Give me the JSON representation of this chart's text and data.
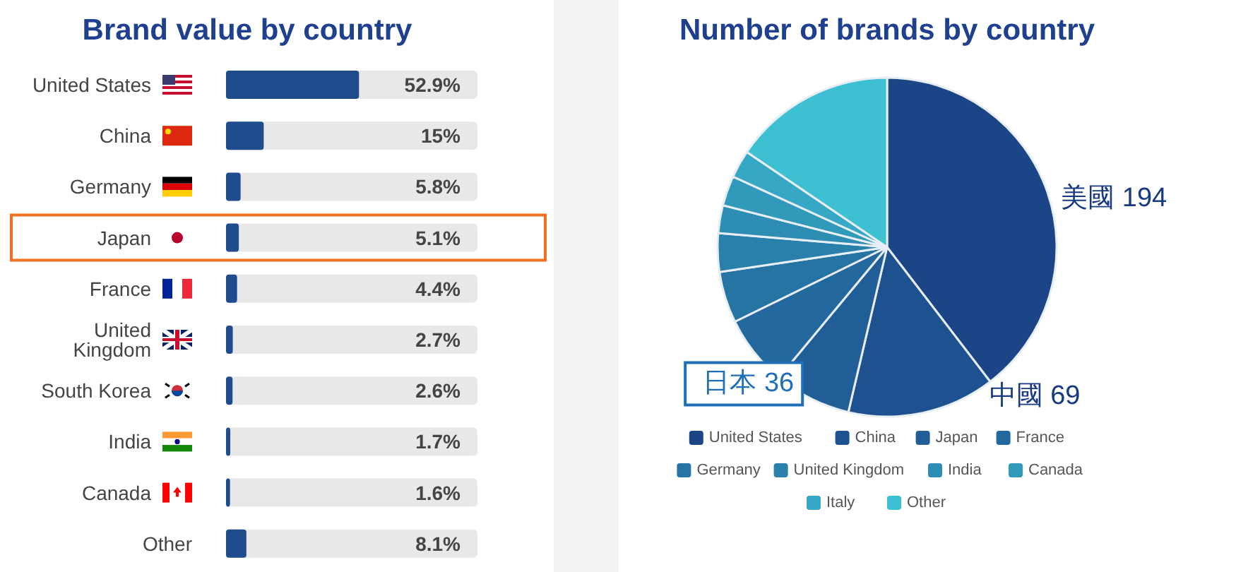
{
  "chart_data": [
    {
      "type": "bar",
      "orientation": "horizontal",
      "title": "Brand value by country",
      "categories": [
        "United States",
        "China",
        "Germany",
        "Japan",
        "France",
        "United Kingdom",
        "South Korea",
        "India",
        "Canada",
        "Other"
      ],
      "values": [
        52.9,
        15,
        5.8,
        5.1,
        4.4,
        2.7,
        2.6,
        1.7,
        1.6,
        8.1
      ],
      "value_labels": [
        "52.9%",
        "15%",
        "5.8%",
        "5.1%",
        "4.4%",
        "2.7%",
        "2.6%",
        "1.7%",
        "1.6%",
        "8.1%"
      ],
      "color": "#1e4c8c",
      "xlim": [
        0,
        100
      ],
      "tick_labels": false
    },
    {
      "type": "pie",
      "title": "Number of brands by country",
      "categories": [
        "United States",
        "China",
        "Japan",
        "France",
        "Germany",
        "United Kingdom",
        "India",
        "Canada",
        "Italy",
        "Other"
      ],
      "values": [
        194,
        69,
        36,
        33,
        24,
        18,
        13,
        14,
        13,
        76
      ],
      "value_labels": [
        "美國 194",
        "中國 69",
        "日本 36",
        null,
        null,
        null,
        null,
        null,
        null,
        null
      ],
      "colors": [
        "#1b4586",
        "#1e5190",
        "#215d97",
        "#23699d",
        "#2674a3",
        "#2980aa",
        "#2d8db2",
        "#3199ba",
        "#36a8c5",
        "#3dc0d2"
      ],
      "legend": "bottom"
    }
  ]
}
